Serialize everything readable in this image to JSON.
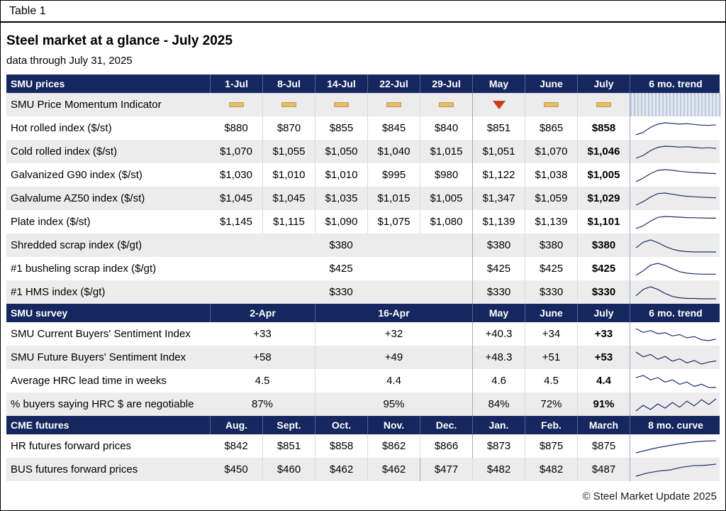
{
  "page": {
    "table_label": "Table 1",
    "title": "Steel market at a glance - July 2025",
    "subtitle": "data through July 31, 2025",
    "footer": "© Steel Market Update 2025"
  },
  "colors": {
    "header_navy": "#16275f",
    "row_alt": "#ececec",
    "momentum_flat": "#e7bd66",
    "momentum_down": "#cc3a1e",
    "sparkline": "#1d2f6d"
  },
  "sections": [
    {
      "name": "smu-prices",
      "header": {
        "label": "SMU prices",
        "cols": [
          {
            "t": "1-Jul"
          },
          {
            "t": "8-Jul"
          },
          {
            "t": "14-Jul"
          },
          {
            "t": "22-Jul"
          },
          {
            "t": "29-Jul"
          },
          {
            "t": "May"
          },
          {
            "t": "June"
          },
          {
            "t": "July"
          }
        ],
        "trend": "6 mo. trend"
      },
      "rows": [
        {
          "label": "SMU Price Momentum Indicator",
          "shade": true,
          "cells": [
            {
              "icon": "flat"
            },
            {
              "icon": "flat"
            },
            {
              "icon": "flat"
            },
            {
              "icon": "flat"
            },
            {
              "icon": "flat"
            },
            {
              "icon": "down",
              "sep": "M"
            },
            {
              "icon": "flat"
            },
            {
              "icon": "flat"
            }
          ],
          "trend": {
            "type": "hatch"
          }
        },
        {
          "label": "Hot rolled index ($/st)",
          "shade": false,
          "cells": [
            {
              "t": "$880"
            },
            {
              "t": "$870"
            },
            {
              "t": "$855"
            },
            {
              "t": "$845"
            },
            {
              "t": "$840"
            },
            {
              "t": "$851",
              "sep": "M"
            },
            {
              "t": "$865"
            },
            {
              "t": "$858",
              "b": true
            }
          ],
          "trend": {
            "type": "spark",
            "v": [
              1,
              2.5,
              5.5,
              7.5,
              8.3,
              7.9,
              7.5,
              7.8,
              7.3,
              6.9,
              6.7,
              7.1
            ]
          }
        },
        {
          "label": "Cold rolled index ($/st)",
          "shade": true,
          "cells": [
            {
              "t": "$1,070"
            },
            {
              "t": "$1,055"
            },
            {
              "t": "$1,050"
            },
            {
              "t": "$1,040"
            },
            {
              "t": "$1,015"
            },
            {
              "t": "$1,051",
              "sep": "M"
            },
            {
              "t": "$1,070"
            },
            {
              "t": "$1,046",
              "b": true
            }
          ],
          "trend": {
            "type": "spark",
            "v": [
              1.5,
              3,
              5.5,
              7.2,
              7.8,
              7.6,
              7.3,
              7.5,
              7.2,
              6.8,
              7.0,
              6.7
            ]
          }
        },
        {
          "label": "Galvanized G90 index ($/st)",
          "shade": false,
          "cells": [
            {
              "t": "$1,030"
            },
            {
              "t": "$1,010"
            },
            {
              "t": "$1,010"
            },
            {
              "t": "$995"
            },
            {
              "t": "$980"
            },
            {
              "t": "$1,122",
              "sep": "M"
            },
            {
              "t": "$1,038"
            },
            {
              "t": "$1,005",
              "b": true
            }
          ],
          "trend": {
            "type": "spark",
            "v": [
              1.5,
              3.5,
              6,
              7.8,
              8.2,
              7.8,
              7.3,
              6.9,
              6.6,
              6.4,
              6.2,
              6.0
            ]
          }
        },
        {
          "label": "Galvalume AZ50 index ($/st)",
          "shade": true,
          "cells": [
            {
              "t": "$1,045"
            },
            {
              "t": "$1,045"
            },
            {
              "t": "$1,035"
            },
            {
              "t": "$1,015"
            },
            {
              "t": "$1,005"
            },
            {
              "t": "$1,347",
              "sep": "M"
            },
            {
              "t": "$1,059"
            },
            {
              "t": "$1,029",
              "b": true
            }
          ],
          "trend": {
            "type": "spark",
            "v": [
              1.5,
              3.5,
              6.2,
              8.2,
              8.5,
              7.8,
              7.1,
              6.6,
              6.3,
              6.1,
              5.9,
              5.8
            ]
          }
        },
        {
          "label": "Plate index ($/st)",
          "shade": false,
          "cells": [
            {
              "t": "$1,145"
            },
            {
              "t": "$1,115"
            },
            {
              "t": "$1,090"
            },
            {
              "t": "$1,075"
            },
            {
              "t": "$1,080"
            },
            {
              "t": "$1,139",
              "sep": "M"
            },
            {
              "t": "$1,139"
            },
            {
              "t": "$1,101",
              "b": true
            }
          ],
          "trend": {
            "type": "spark",
            "v": [
              1.5,
              3,
              5.5,
              7.5,
              8,
              7.8,
              7.6,
              7.4,
              7.3,
              7.2,
              7.1,
              7.1
            ]
          }
        },
        {
          "label": "Shredded scrap index ($/gt)",
          "shade": true,
          "cells": [
            {
              "t": "$380",
              "span": 5
            },
            {
              "t": "$380",
              "sep": "M"
            },
            {
              "t": "$380"
            },
            {
              "t": "$380",
              "b": true
            }
          ],
          "trend": {
            "type": "spark",
            "v": [
              6,
              7.6,
              8.3,
              7.5,
              6.4,
              5.6,
              5.1,
              4.9,
              4.8,
              4.8,
              4.8,
              4.8
            ]
          }
        },
        {
          "label": "#1 busheling scrap index ($/gt)",
          "shade": false,
          "cells": [
            {
              "t": "$425",
              "span": 5
            },
            {
              "t": "$425",
              "sep": "M"
            },
            {
              "t": "$425"
            },
            {
              "t": "$425",
              "b": true
            }
          ],
          "trend": {
            "type": "spark",
            "v": [
              4.5,
              6,
              7.8,
              8.4,
              7.7,
              6.6,
              5.7,
              5.2,
              5.0,
              4.9,
              4.9,
              4.9
            ]
          }
        },
        {
          "label": "#1 HMS index ($/gt)",
          "shade": true,
          "cells": [
            {
              "t": "$330",
              "span": 5
            },
            {
              "t": "$330",
              "sep": "M"
            },
            {
              "t": "$330"
            },
            {
              "t": "$330",
              "b": true
            }
          ],
          "trend": {
            "type": "spark",
            "v": [
              5.5,
              7.4,
              8.2,
              7.4,
              6.2,
              5.3,
              4.9,
              4.7,
              4.7,
              4.6,
              4.6,
              4.6
            ]
          }
        }
      ]
    },
    {
      "name": "smu-survey",
      "header": {
        "label": "SMU survey",
        "cols": [
          {
            "t": "2-Apr",
            "span": 2
          },
          {
            "t": "16-Apr",
            "span": 3
          },
          {
            "t": "May"
          },
          {
            "t": "June"
          },
          {
            "t": "July"
          }
        ],
        "trend": "6 mo. trend"
      },
      "rows": [
        {
          "label": "SMU Current Buyers' Sentiment Index",
          "shade": false,
          "cells": [
            {
              "t": "+33",
              "span": 2
            },
            {
              "t": "+32",
              "span": 3
            },
            {
              "t": "+40.3",
              "sep": "M"
            },
            {
              "t": "+34"
            },
            {
              "t": "+33",
              "b": true
            }
          ],
          "trend": {
            "type": "spark",
            "v": [
              8.2,
              7.0,
              7.6,
              6.6,
              6.9,
              5.9,
              6.3,
              5.3,
              5.7,
              4.7,
              4.4,
              4.9
            ]
          }
        },
        {
          "label": "SMU Future Buyers' Sentiment Index",
          "shade": true,
          "cells": [
            {
              "t": "+58",
              "span": 2
            },
            {
              "t": "+49",
              "span": 3
            },
            {
              "t": "+48.3",
              "sep": "M"
            },
            {
              "t": "+51"
            },
            {
              "t": "+53",
              "b": true
            }
          ],
          "trend": {
            "type": "spark",
            "v": [
              7.5,
              6.3,
              6.9,
              5.7,
              6.4,
              5.2,
              5.8,
              4.8,
              5.4,
              4.5,
              5.0,
              5.3
            ]
          }
        },
        {
          "label": "Average HRC lead time in weeks",
          "shade": false,
          "cells": [
            {
              "t": "4.5",
              "span": 2
            },
            {
              "t": "4.4",
              "span": 3
            },
            {
              "t": "4.6",
              "sep": "M"
            },
            {
              "t": "4.5"
            },
            {
              "t": "4.4",
              "b": true
            }
          ],
          "trend": {
            "type": "spark",
            "v": [
              6.2,
              6.6,
              5.8,
              6.2,
              5.4,
              5.8,
              5.0,
              5.4,
              4.6,
              5.0,
              4.4,
              4.4
            ]
          }
        },
        {
          "label": "% buyers saying HRC $ are negotiable",
          "shade": true,
          "cells": [
            {
              "t": "87%",
              "span": 2
            },
            {
              "t": "95%",
              "span": 3
            },
            {
              "t": "84%",
              "sep": "M"
            },
            {
              "t": "72%"
            },
            {
              "t": "91%",
              "b": true
            }
          ],
          "trend": {
            "type": "spark",
            "v": [
              4.5,
              6.5,
              5,
              7,
              5.5,
              7.5,
              5.8,
              8,
              6.3,
              8.5,
              6.8,
              8.8
            ]
          }
        }
      ]
    },
    {
      "name": "cme-futures",
      "header": {
        "label": "CME futures",
        "cols": [
          {
            "t": "Aug."
          },
          {
            "t": "Sept."
          },
          {
            "t": "Oct."
          },
          {
            "t": "Nov."
          },
          {
            "t": "Dec."
          },
          {
            "t": "Jan."
          },
          {
            "t": "Feb."
          },
          {
            "t": "March"
          }
        ],
        "trend": "8 mo. curve"
      },
      "rows": [
        {
          "label": "HR futures forward prices",
          "shade": false,
          "cells": [
            {
              "t": "$842"
            },
            {
              "t": "$851"
            },
            {
              "t": "$858"
            },
            {
              "t": "$862"
            },
            {
              "t": "$866"
            },
            {
              "t": "$873",
              "sep": "M"
            },
            {
              "t": "$875"
            },
            {
              "t": "$875"
            }
          ],
          "trend": {
            "type": "spark",
            "v": [
              1.5,
              3,
              4.3,
              5.4,
              6.3,
              7.1,
              7.6,
              7.8
            ]
          }
        },
        {
          "label": "BUS futures forward prices",
          "shade": true,
          "cells": [
            {
              "t": "$450"
            },
            {
              "t": "$460"
            },
            {
              "t": "$462"
            },
            {
              "t": "$462"
            },
            {
              "t": "$477",
              "sep": "M"
            },
            {
              "t": "$482"
            },
            {
              "t": "$482"
            },
            {
              "t": "$487"
            }
          ],
          "trend": {
            "type": "spark",
            "v": [
              1.5,
              3.2,
              4.2,
              4.8,
              6.2,
              7.0,
              7.2,
              7.8
            ]
          }
        }
      ]
    }
  ]
}
